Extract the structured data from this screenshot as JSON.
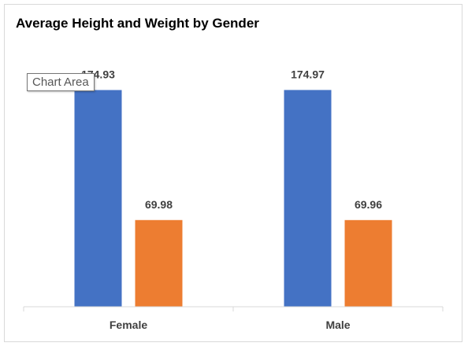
{
  "chart_data": {
    "type": "bar",
    "title": "Average Height and Weight by Gender",
    "categories": [
      "Female",
      "Male"
    ],
    "series": [
      {
        "values": [
          174.93,
          174.97
        ],
        "color": "#4472C4"
      },
      {
        "values": [
          69.98,
          69.96
        ],
        "color": "#ED7D31"
      }
    ],
    "data_label_texts": [
      [
        "174.93",
        "174.97"
      ],
      [
        "69.98",
        "69.96"
      ]
    ],
    "ylim": [
      0,
      200
    ],
    "grid": false,
    "legend": "none",
    "xlabel": "",
    "ylabel": ""
  },
  "tooltip": {
    "text": "Chart Area"
  }
}
